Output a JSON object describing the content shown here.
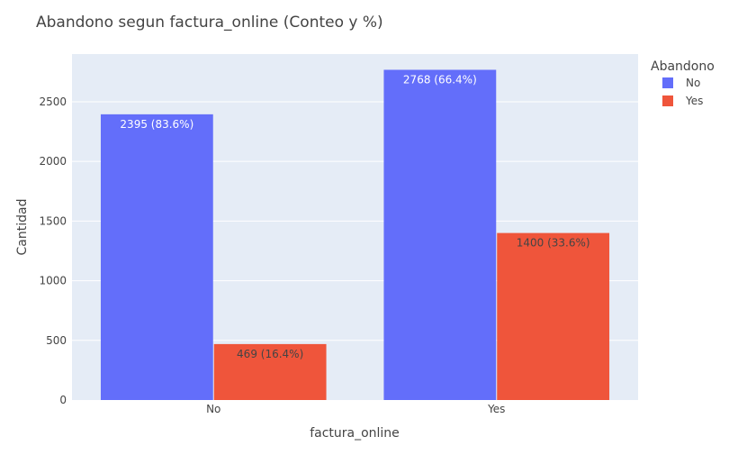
{
  "chart_data": {
    "type": "bar",
    "barmode": "group",
    "title": "Abandono segun factura_online (Conteo y %)",
    "xlabel": "factura_online",
    "ylabel": "Cantidad",
    "categories": [
      "No",
      "Yes"
    ],
    "ylim": [
      0,
      2900
    ],
    "yticks": [
      0,
      500,
      1000,
      1500,
      2000,
      2500
    ],
    "grid": true,
    "legend": {
      "title": "Abandono",
      "placement": "top-right"
    },
    "series": [
      {
        "name": "No",
        "color": "#636efa",
        "values": [
          2395,
          2768
        ],
        "labels": [
          "2395 (83.6%)",
          "2768 (66.4%)"
        ],
        "label_color": "#ffffff"
      },
      {
        "name": "Yes",
        "color": "#ef553b",
        "values": [
          469,
          1400
        ],
        "labels": [
          "469 (16.4%)",
          "1400 (33.6%)"
        ],
        "label_color": "#444444"
      }
    ]
  }
}
